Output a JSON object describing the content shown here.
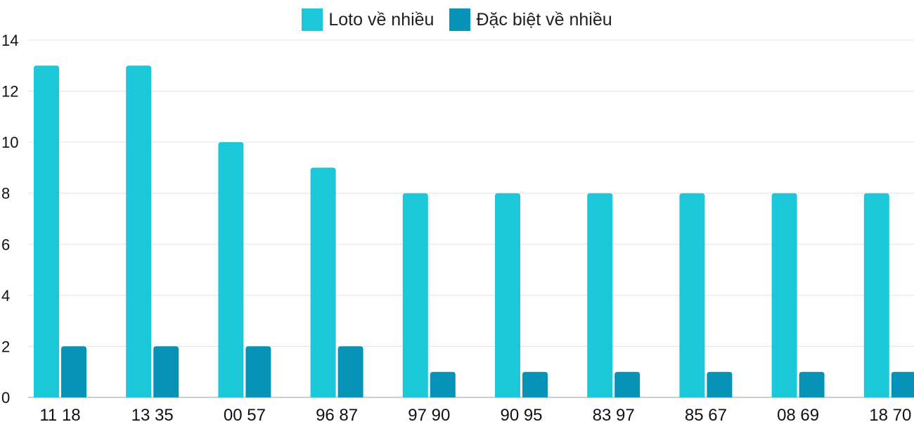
{
  "chart_data": {
    "type": "bar",
    "categories": [
      "11 18",
      "13 35",
      "00 57",
      "96 87",
      "97 90",
      "90 95",
      "83 97",
      "85 67",
      "08 69",
      "18 70"
    ],
    "series": [
      {
        "name": "Loto về nhiều",
        "color": "#1cc7da",
        "values": [
          13,
          13,
          10,
          9,
          8,
          8,
          8,
          8,
          8,
          8
        ]
      },
      {
        "name": "Đặc biệt về nhiều",
        "color": "#0792b8",
        "values": [
          2,
          2,
          2,
          2,
          1,
          1,
          1,
          1,
          1,
          1
        ]
      }
    ],
    "ylim": [
      0,
      14
    ],
    "yticks": [
      0,
      2,
      4,
      6,
      8,
      10,
      12,
      14
    ],
    "grid": true,
    "legend_position": "top-center",
    "title": "",
    "xlabel": "",
    "ylabel": ""
  }
}
